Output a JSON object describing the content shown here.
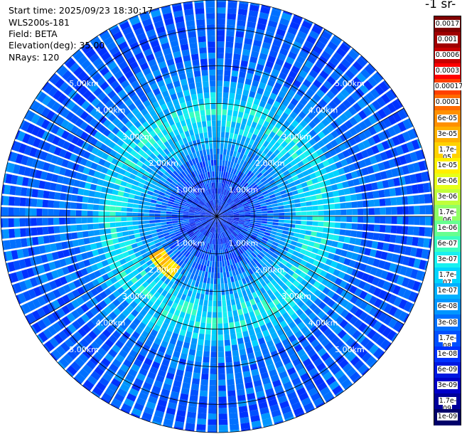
{
  "header": {
    "start_time": "Start time: 2025/09/23 18:30:17",
    "instrument": "WLS200s-181",
    "field": "Field: BETA",
    "elevation": "Elevation(deg): 35.00",
    "nrays": "NRays: 120"
  },
  "colorbar": {
    "title_fragment": "-1 sr-",
    "labels": [
      "0.0017",
      "0.001",
      "0.0006",
      "0.0003",
      "0.00017",
      "0.0001",
      "6e-05",
      "3e-05",
      "1.7e-05",
      "1e-05",
      "6e-06",
      "3e-06",
      "1.7e-06",
      "1e-06",
      "6e-07",
      "3e-07",
      "1.7e-07",
      "1e-07",
      "6e-08",
      "3e-08",
      "1.7e-08",
      "1e-08",
      "6e-09",
      "3e-09",
      "1.7e-09",
      "1e-09"
    ],
    "colors": [
      "#7f0000",
      "#a00000",
      "#c80000",
      "#ff0000",
      "#ff4000",
      "#ff6a00",
      "#ff9000",
      "#ffb000",
      "#ffd200",
      "#fff000",
      "#e6ff1a",
      "#c0ff3a",
      "#90ff66",
      "#66ff90",
      "#3affc0",
      "#18f0f0",
      "#00d4ff",
      "#00b0ff",
      "#0096ff",
      "#0070ff",
      "#0050ff",
      "#0032ff",
      "#0018e0",
      "#0000c8",
      "#00009a",
      "#00006a"
    ]
  },
  "chart_data": {
    "type": "heatmap",
    "projection": "polar-ppi",
    "field": "BETA",
    "elevation_deg": 35.0,
    "n_rays": 120,
    "range_rings_km": [
      1.0,
      2.0,
      3.0,
      4.0,
      5.0
    ],
    "ring_labels": [
      "1.00km",
      "2.00km",
      "3.00km",
      "4.00km",
      "5.00km"
    ],
    "max_range_km": 5.75,
    "azimuth_spokes_deg": [
      0,
      30,
      60,
      90,
      120,
      150,
      180,
      210,
      240,
      270,
      300,
      330
    ],
    "range_profile": [
      {
        "range_km": 0.5,
        "beta": 1e-08
      },
      {
        "range_km": 1.0,
        "beta": 1.5e-08
      },
      {
        "range_km": 1.5,
        "beta": 3e-08
      },
      {
        "range_km": 2.0,
        "beta": 8e-08
      },
      {
        "range_km": 2.5,
        "beta": 2e-07
      },
      {
        "range_km": 2.8,
        "beta": 3e-07
      },
      {
        "range_km": 3.2,
        "beta": 1.2e-07
      },
      {
        "range_km": 3.6,
        "beta": 5e-08
      },
      {
        "range_km": 4.0,
        "beta": 2.5e-08
      },
      {
        "range_km": 5.0,
        "beta": 2e-08
      }
    ],
    "features": [
      {
        "name": "strong-return-arc",
        "azimuth_deg": [
          215,
          240
        ],
        "range_km": [
          1.7,
          2.1
        ],
        "beta": 1.7e-05
      }
    ],
    "color_scale": "log",
    "vmin": 1e-09,
    "vmax": 0.0017
  }
}
